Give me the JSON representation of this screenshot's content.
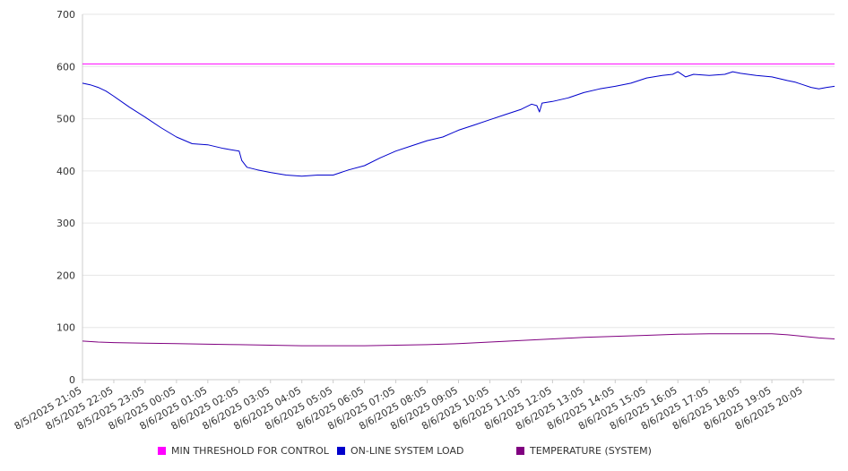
{
  "chart_data": {
    "type": "line",
    "title": "",
    "xlabel": "",
    "ylabel": "",
    "ylim": [
      0,
      700
    ],
    "yticks": [
      "0",
      "100",
      "200",
      "300",
      "400",
      "500",
      "600",
      "700"
    ],
    "grid": true,
    "legend_position": "bottom",
    "x_tick_labels": [
      "8/5/2025 21:05",
      "8/5/2025 22:05",
      "8/5/2025 23:05",
      "8/6/2025 00:05",
      "8/6/2025 01:05",
      "8/6/2025 02:05",
      "8/6/2025 03:05",
      "8/6/2025 04:05",
      "8/6/2025 05:05",
      "8/6/2025 06:05",
      "8/6/2025 07:05",
      "8/6/2025 08:05",
      "8/6/2025 09:05",
      "8/6/2025 10:05",
      "8/6/2025 11:05",
      "8/6/2025 12:05",
      "8/6/2025 13:05",
      "8/6/2025 14:05",
      "8/6/2025 15:05",
      "8/6/2025 16:05",
      "8/6/2025 17:05",
      "8/6/2025 18:05",
      "8/6/2025 19:05",
      "8/6/2025 20:05"
    ],
    "x_range": [
      "8/5/2025 21:05",
      "8/6/2025 21:05"
    ],
    "series": [
      {
        "name": "MIN THRESHOLD FOR CONTROL",
        "color": "#ff00ff",
        "x": [
          "8/5/2025 21:05",
          "8/6/2025 21:05"
        ],
        "y": [
          605,
          605
        ]
      },
      {
        "name": "ON-LINE SYSTEM LOAD",
        "color": "#0000cc",
        "x": [
          "8/5/2025 21:05",
          "8/5/2025 21:20",
          "8/5/2025 21:35",
          "8/5/2025 21:50",
          "8/5/2025 22:05",
          "8/5/2025 22:35",
          "8/5/2025 23:05",
          "8/5/2025 23:35",
          "8/6/2025 00:05",
          "8/6/2025 00:35",
          "8/6/2025 01:05",
          "8/6/2025 01:35",
          "8/6/2025 02:05",
          "8/6/2025 02:10",
          "8/6/2025 02:20",
          "8/6/2025 02:40",
          "8/6/2025 03:05",
          "8/6/2025 03:35",
          "8/6/2025 04:05",
          "8/6/2025 04:35",
          "8/6/2025 05:05",
          "8/6/2025 05:35",
          "8/6/2025 06:05",
          "8/6/2025 06:35",
          "8/6/2025 07:05",
          "8/6/2025 07:35",
          "8/6/2025 08:05",
          "8/6/2025 08:35",
          "8/6/2025 09:05",
          "8/6/2025 09:35",
          "8/6/2025 10:05",
          "8/6/2025 10:35",
          "8/6/2025 11:05",
          "8/6/2025 11:25",
          "8/6/2025 11:35",
          "8/6/2025 11:40",
          "8/6/2025 11:45",
          "8/6/2025 12:05",
          "8/6/2025 12:35",
          "8/6/2025 13:05",
          "8/6/2025 13:35",
          "8/6/2025 14:05",
          "8/6/2025 14:35",
          "8/6/2025 15:05",
          "8/6/2025 15:35",
          "8/6/2025 15:55",
          "8/6/2025 16:05",
          "8/6/2025 16:20",
          "8/6/2025 16:35",
          "8/6/2025 17:05",
          "8/6/2025 17:35",
          "8/6/2025 17:50",
          "8/6/2025 18:05",
          "8/6/2025 18:35",
          "8/6/2025 19:05",
          "8/6/2025 19:35",
          "8/6/2025 19:50",
          "8/6/2025 20:05",
          "8/6/2025 20:20",
          "8/6/2025 20:35",
          "8/6/2025 20:50",
          "8/6/2025 21:05"
        ],
        "y": [
          568,
          565,
          560,
          553,
          543,
          522,
          503,
          483,
          465,
          452,
          450,
          443,
          438,
          420,
          407,
          402,
          397,
          392,
          390,
          392,
          392,
          402,
          410,
          425,
          438,
          448,
          458,
          465,
          478,
          488,
          498,
          508,
          518,
          528,
          525,
          513,
          530,
          533,
          540,
          550,
          557,
          562,
          568,
          578,
          583,
          585,
          590,
          580,
          585,
          583,
          585,
          590,
          587,
          583,
          580,
          573,
          570,
          565,
          560,
          557,
          560,
          562
        ]
      },
      {
        "name": "TEMPERATURE (SYSTEM)",
        "color": "#800080",
        "x": [
          "8/5/2025 21:05",
          "8/5/2025 21:35",
          "8/5/2025 22:05",
          "8/5/2025 23:05",
          "8/6/2025 00:05",
          "8/6/2025 01:05",
          "8/6/2025 02:05",
          "8/6/2025 03:05",
          "8/6/2025 04:05",
          "8/6/2025 05:05",
          "8/6/2025 06:05",
          "8/6/2025 07:05",
          "8/6/2025 08:05",
          "8/6/2025 09:05",
          "8/6/2025 10:05",
          "8/6/2025 11:05",
          "8/6/2025 12:05",
          "8/6/2025 13:05",
          "8/6/2025 14:05",
          "8/6/2025 15:05",
          "8/6/2025 16:05",
          "8/6/2025 17:05",
          "8/6/2025 18:05",
          "8/6/2025 19:05",
          "8/6/2025 19:35",
          "8/6/2025 20:05",
          "8/6/2025 20:35",
          "8/6/2025 21:05"
        ],
        "y": [
          74,
          72,
          71,
          70,
          69,
          68,
          67,
          66,
          65,
          65,
          65,
          66,
          67,
          69,
          72,
          75,
          78,
          81,
          83,
          85,
          87,
          88,
          88,
          88,
          86,
          83,
          80,
          78
        ]
      }
    ]
  }
}
